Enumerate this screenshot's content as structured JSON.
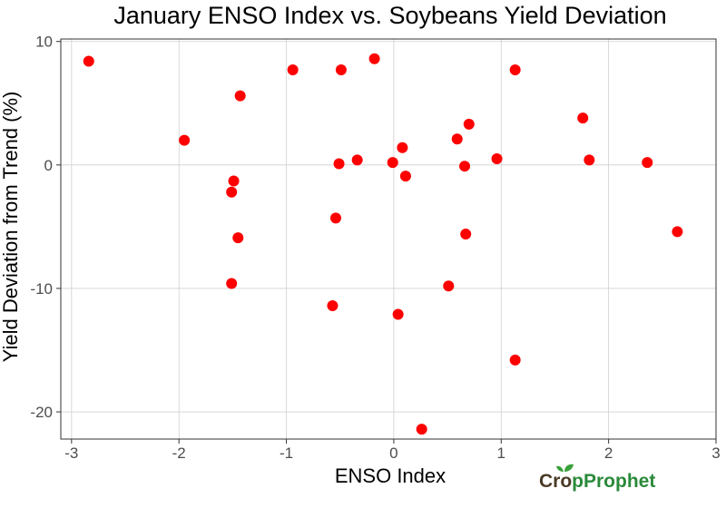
{
  "chart_data": {
    "type": "scatter",
    "title": "January ENSO Index vs. Soybeans Yield Deviation",
    "xlabel": "ENSO Index",
    "ylabel": "Yield Deviation from Trend (%)",
    "xlim": [
      -3.1,
      3.0
    ],
    "ylim": [
      -22.2,
      10.2
    ],
    "xticks": [
      -3,
      -2,
      -1,
      0,
      1,
      2,
      3
    ],
    "yticks": [
      -20,
      -10,
      0,
      10
    ],
    "xtick_labels": [
      "-3",
      "-2",
      "-1",
      "0",
      "1",
      "2",
      "3"
    ],
    "ytick_labels": [
      "-20",
      "-10",
      "0",
      "10"
    ],
    "grid": true,
    "point_color": "#ff0000",
    "points": [
      {
        "x": -2.84,
        "y": 8.4
      },
      {
        "x": -1.95,
        "y": 2.0
      },
      {
        "x": -1.43,
        "y": 5.6
      },
      {
        "x": -1.49,
        "y": -1.3
      },
      {
        "x": -1.51,
        "y": -2.2
      },
      {
        "x": -1.45,
        "y": -5.9
      },
      {
        "x": -1.51,
        "y": -9.6
      },
      {
        "x": -0.94,
        "y": 7.7
      },
      {
        "x": -0.49,
        "y": 7.7
      },
      {
        "x": -0.18,
        "y": 8.6
      },
      {
        "x": -0.51,
        "y": 0.1
      },
      {
        "x": -0.34,
        "y": 0.4
      },
      {
        "x": -0.54,
        "y": -4.3
      },
      {
        "x": -0.57,
        "y": -11.4
      },
      {
        "x": -0.01,
        "y": 0.2
      },
      {
        "x": 0.08,
        "y": 1.4
      },
      {
        "x": 0.11,
        "y": -0.9
      },
      {
        "x": 0.04,
        "y": -12.1
      },
      {
        "x": 0.26,
        "y": -21.4
      },
      {
        "x": 0.59,
        "y": 2.1
      },
      {
        "x": 0.7,
        "y": 3.3
      },
      {
        "x": 0.66,
        "y": -0.1
      },
      {
        "x": 0.67,
        "y": -5.6
      },
      {
        "x": 0.51,
        "y": -9.8
      },
      {
        "x": 0.96,
        "y": 0.5
      },
      {
        "x": 1.13,
        "y": 7.7
      },
      {
        "x": 1.13,
        "y": -15.8
      },
      {
        "x": 1.76,
        "y": 3.8
      },
      {
        "x": 1.82,
        "y": 0.4
      },
      {
        "x": 2.36,
        "y": 0.2
      },
      {
        "x": 2.64,
        "y": -5.4
      }
    ]
  },
  "logo": {
    "text_before": "Cr",
    "text_o": "o",
    "text_after": "pProphet",
    "dark_color": "#4a3a26",
    "green_color": "#2a8a3a",
    "leaf_color": "#3aa03a"
  }
}
